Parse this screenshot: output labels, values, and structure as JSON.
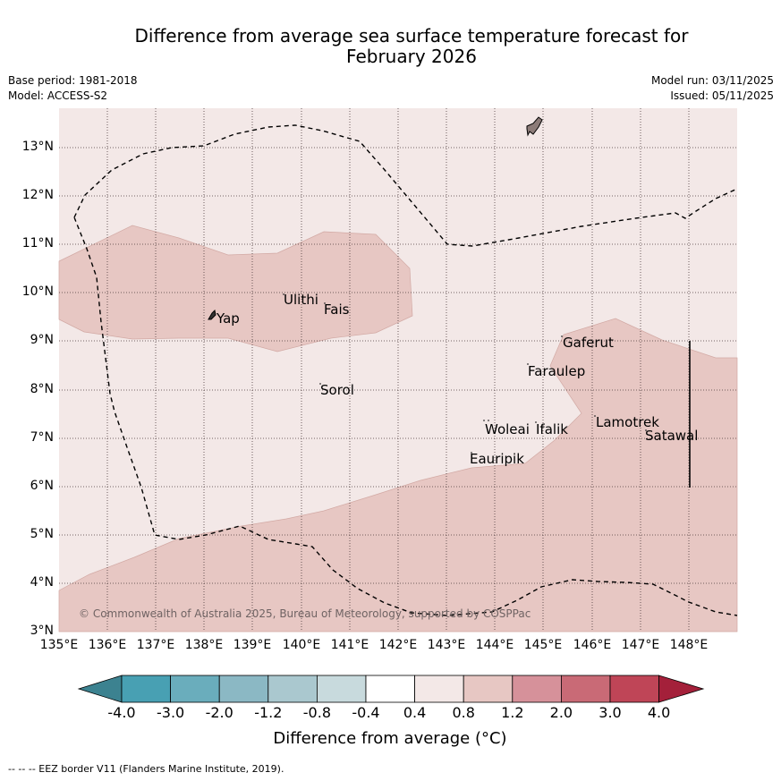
{
  "header": {
    "title_line1": "Difference from average sea surface temperature forecast for",
    "title_line2": "February 2026",
    "base_period": "Base period: 1981-2018",
    "model": "Model: ACCESS-S2",
    "model_run": "Model run: 03/11/2025",
    "issued": "Issued: 05/11/2025"
  },
  "map": {
    "lon_ticks": [
      "135°E",
      "136°E",
      "137°E",
      "138°E",
      "139°E",
      "140°E",
      "141°E",
      "142°E",
      "143°E",
      "144°E",
      "145°E",
      "146°E",
      "147°E",
      "148°E"
    ],
    "lat_ticks": [
      "3°N",
      "4°N",
      "5°N",
      "6°N",
      "7°N",
      "8°N",
      "9°N",
      "10°N",
      "11°N",
      "12°N",
      "13°N"
    ],
    "places": [
      "Yap",
      "Ulithi",
      "Fais",
      "Sorol",
      "Gaferut",
      "Faraulep",
      "Woleai",
      "Ifalik",
      "Lamotrek",
      "Satawal",
      "Eauripik"
    ],
    "copyright": "© Commonwealth of Australia 2025, Bureau of Meteorology, supported by COSPPac",
    "colors": {
      "base_fill": "#f3e8e7",
      "warm_fill": "#e7c7c3",
      "land": "#8c7b78"
    }
  },
  "colorbar": {
    "colors": [
      "#3c8290",
      "#48a0b3",
      "#6aadbc",
      "#8bb8c4",
      "#aac8cf",
      "#c8dadd",
      "#ffffff",
      "#f3e8e7",
      "#e7c7c3",
      "#d6919a",
      "#c96a76",
      "#bf4557",
      "#a4203a"
    ],
    "tick_labels": [
      "-4.0",
      "-3.0",
      "-2.0",
      "-1.2",
      "-0.8",
      "-0.4",
      "0.4",
      "0.8",
      "1.2",
      "2.0",
      "3.0",
      "4.0"
    ],
    "title": "Difference from average (°C)"
  },
  "footer": {
    "text": "--  --  -- EEZ border V11 (Flanders Marine Institute, 2019)."
  }
}
